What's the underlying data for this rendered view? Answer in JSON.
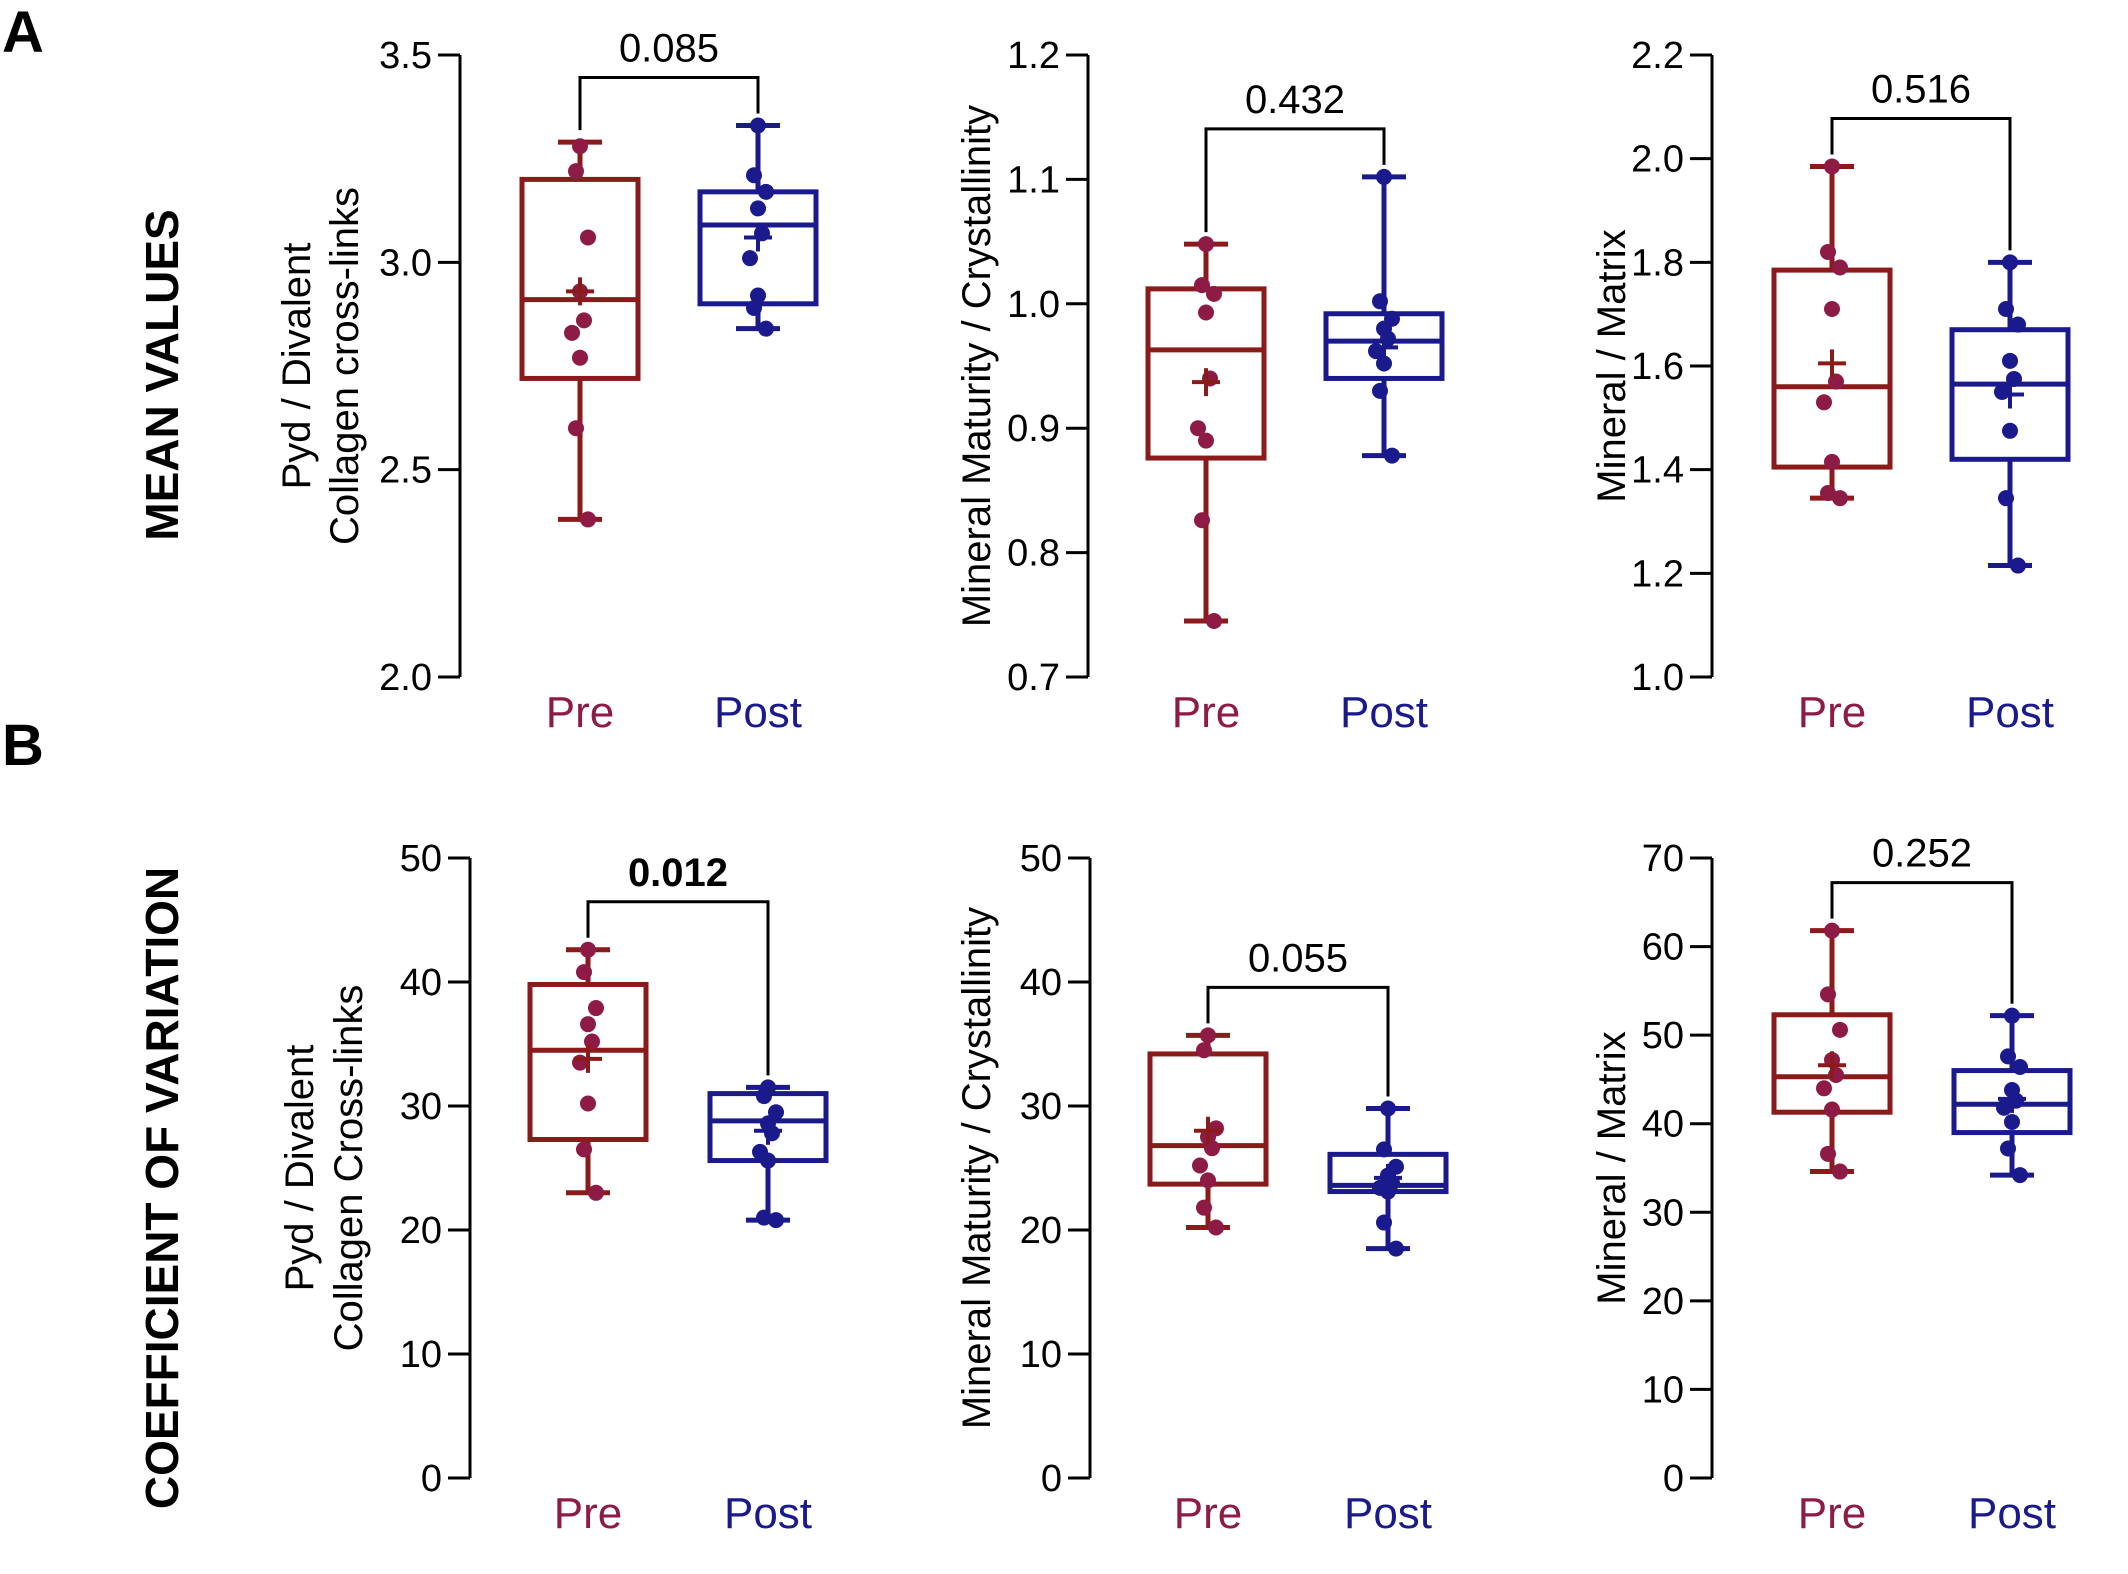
{
  "panels": {
    "A": {
      "letter": "A",
      "row_label": "MEAN VALUES"
    },
    "B": {
      "letter": "B",
      "row_label": "COEFFICIENT OF VARIATION"
    }
  },
  "colors": {
    "pre": "#8B1A1A",
    "pre_dot": "#8E1B46",
    "post": "#1A1A8C",
    "axis": "#000000"
  },
  "groups": [
    "Pre",
    "Post"
  ],
  "chart_data": [
    {
      "type": "box",
      "panel": "A",
      "ylabel": [
        "Pyd / Divalent",
        "Collagen cross-links"
      ],
      "ylim": [
        2.0,
        3.5
      ],
      "yticks": [
        "2.0",
        "2.5",
        "3.0",
        "3.5"
      ],
      "yticks_values": [
        2.0,
        2.5,
        3.0,
        3.5
      ],
      "categories": [
        "Pre",
        "Post"
      ],
      "p_value": "0.085",
      "p_bold": false,
      "series": [
        {
          "name": "Pre",
          "min": 2.38,
          "q1": 2.72,
          "median": 2.91,
          "q3": 3.2,
          "max": 3.29,
          "mean": 2.93,
          "points": [
            3.28,
            3.22,
            3.06,
            2.93,
            2.86,
            2.83,
            2.77,
            2.6,
            2.38
          ]
        },
        {
          "name": "Post",
          "min": 2.84,
          "q1": 2.9,
          "median": 3.09,
          "q3": 3.17,
          "max": 3.33,
          "mean": 3.06,
          "points": [
            3.33,
            3.21,
            3.17,
            3.13,
            3.07,
            3.01,
            2.92,
            2.89,
            2.84
          ]
        }
      ]
    },
    {
      "type": "box",
      "panel": "A",
      "ylabel": [
        "Mineral Maturity / Crystallinity"
      ],
      "ylim": [
        0.7,
        1.2
      ],
      "yticks": [
        "0.7",
        "0.8",
        "0.9",
        "1.0",
        "1.1",
        "1.2"
      ],
      "yticks_values": [
        0.7,
        0.8,
        0.9,
        1.0,
        1.1,
        1.2
      ],
      "categories": [
        "Pre",
        "Post"
      ],
      "p_value": "0.432",
      "p_bold": false,
      "series": [
        {
          "name": "Pre",
          "min": 0.745,
          "q1": 0.876,
          "median": 0.963,
          "q3": 1.012,
          "max": 1.048,
          "mean": 0.937,
          "points": [
            1.048,
            1.015,
            1.008,
            0.993,
            0.94,
            0.9,
            0.89,
            0.826,
            0.745
          ]
        },
        {
          "name": "Post",
          "min": 0.878,
          "q1": 0.94,
          "median": 0.97,
          "q3": 0.992,
          "max": 1.102,
          "mean": 0.965,
          "points": [
            1.102,
            1.002,
            0.988,
            0.98,
            0.972,
            0.962,
            0.952,
            0.93,
            0.878
          ]
        }
      ]
    },
    {
      "type": "box",
      "panel": "A",
      "ylabel": [
        "Mineral / Matrix"
      ],
      "ylim": [
        1.0,
        2.2
      ],
      "yticks": [
        "1.0",
        "1.2",
        "1.4",
        "1.6",
        "1.8",
        "2.0",
        "2.2"
      ],
      "yticks_values": [
        1.0,
        1.2,
        1.4,
        1.6,
        1.8,
        2.0,
        2.2
      ],
      "categories": [
        "Pre",
        "Post"
      ],
      "p_value": "0.516",
      "p_bold": false,
      "series": [
        {
          "name": "Pre",
          "min": 1.345,
          "q1": 1.405,
          "median": 1.56,
          "q3": 1.785,
          "max": 1.985,
          "mean": 1.605,
          "points": [
            1.985,
            1.82,
            1.79,
            1.71,
            1.57,
            1.53,
            1.415,
            1.355,
            1.345
          ]
        },
        {
          "name": "Post",
          "min": 1.215,
          "q1": 1.42,
          "median": 1.565,
          "q3": 1.67,
          "max": 1.8,
          "mean": 1.545,
          "points": [
            1.8,
            1.71,
            1.68,
            1.61,
            1.575,
            1.55,
            1.475,
            1.345,
            1.215
          ]
        }
      ]
    },
    {
      "type": "box",
      "panel": "B",
      "ylabel": [
        "Pyd / Divalent",
        "Collagen Cross-links"
      ],
      "ylim": [
        0,
        50
      ],
      "yticks": [
        "0",
        "10",
        "20",
        "30",
        "40",
        "50"
      ],
      "yticks_values": [
        0,
        10,
        20,
        30,
        40,
        50
      ],
      "categories": [
        "Pre",
        "Post"
      ],
      "p_value": "0.012",
      "p_bold": true,
      "series": [
        {
          "name": "Pre",
          "min": 23.0,
          "q1": 27.3,
          "median": 34.5,
          "q3": 39.8,
          "max": 42.6,
          "mean": 33.8,
          "points": [
            42.6,
            40.8,
            37.9,
            36.6,
            35.2,
            33.5,
            30.2,
            26.5,
            23.0
          ]
        },
        {
          "name": "Post",
          "min": 20.8,
          "q1": 25.6,
          "median": 28.8,
          "q3": 31.0,
          "max": 31.5,
          "mean": 28.0,
          "points": [
            31.5,
            30.8,
            29.5,
            28.6,
            27.8,
            26.3,
            25.6,
            21.0,
            20.8
          ]
        }
      ]
    },
    {
      "type": "box",
      "panel": "B",
      "ylabel": [
        "Mineral Maturity / Crystallinity"
      ],
      "ylim": [
        0,
        50
      ],
      "yticks": [
        "0",
        "10",
        "20",
        "30",
        "40",
        "50"
      ],
      "yticks_values": [
        0,
        10,
        20,
        30,
        40,
        50
      ],
      "categories": [
        "Pre",
        "Post"
      ],
      "p_value": "0.055",
      "p_bold": false,
      "series": [
        {
          "name": "Pre",
          "min": 20.2,
          "q1": 23.7,
          "median": 26.8,
          "q3": 34.2,
          "max": 35.7,
          "mean": 28.0,
          "points": [
            35.7,
            34.5,
            28.2,
            27.5,
            26.6,
            25.2,
            24.0,
            21.8,
            20.2
          ]
        },
        {
          "name": "Post",
          "min": 18.5,
          "q1": 23.1,
          "median": 23.6,
          "q3": 26.1,
          "max": 29.8,
          "mean": 24.2,
          "points": [
            29.8,
            26.5,
            25.1,
            24.4,
            23.8,
            23.4,
            23.1,
            20.6,
            18.5
          ]
        }
      ]
    },
    {
      "type": "box",
      "panel": "B",
      "ylabel": [
        "Mineral / Matrix"
      ],
      "ylim": [
        0,
        70
      ],
      "yticks": [
        "0",
        "10",
        "20",
        "30",
        "40",
        "50",
        "60",
        "70"
      ],
      "yticks_values": [
        0,
        10,
        20,
        30,
        40,
        50,
        60,
        70
      ],
      "categories": [
        "Pre",
        "Post"
      ],
      "p_value": "0.252",
      "p_bold": false,
      "series": [
        {
          "name": "Pre",
          "min": 34.6,
          "q1": 41.3,
          "median": 45.3,
          "q3": 52.3,
          "max": 61.8,
          "mean": 46.6,
          "points": [
            61.8,
            54.6,
            50.6,
            47.2,
            45.5,
            44.0,
            41.6,
            36.6,
            34.6
          ]
        },
        {
          "name": "Post",
          "min": 34.2,
          "q1": 39.0,
          "median": 42.2,
          "q3": 46.0,
          "max": 52.2,
          "mean": 42.8,
          "points": [
            52.2,
            47.6,
            46.4,
            43.8,
            42.6,
            41.8,
            40.2,
            37.2,
            34.2
          ]
        }
      ]
    }
  ]
}
